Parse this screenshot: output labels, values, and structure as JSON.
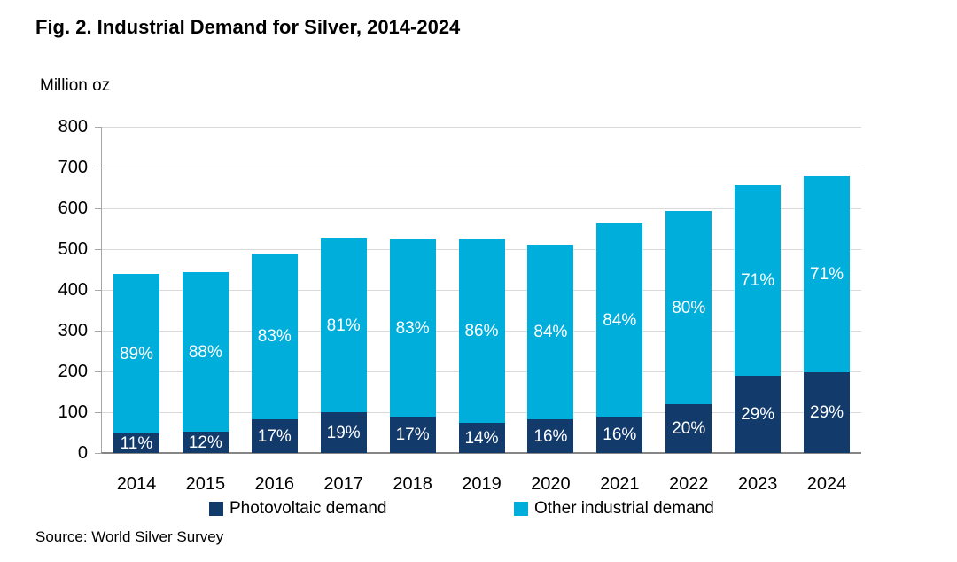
{
  "title": "Fig. 2. Industrial Demand for Silver, 2014-2024",
  "y_axis_title": "Million oz",
  "source": "Source: World Silver Survey",
  "colors": {
    "photovoltaic": "#123A6B",
    "other_industrial": "#00AEDC",
    "gridline": "#D9D9D9",
    "axis": "#A6A6A6"
  },
  "legend": {
    "items": [
      {
        "label": "Photovoltaic demand"
      },
      {
        "label": "Other industrial demand"
      }
    ]
  },
  "chart_data": {
    "type": "bar",
    "stacked": true,
    "title": "Fig. 2. Industrial Demand for Silver, 2014-2024",
    "ylabel": "Million oz",
    "xlabel": "",
    "categories": [
      "2014",
      "2015",
      "2016",
      "2017",
      "2018",
      "2019",
      "2020",
      "2021",
      "2022",
      "2023",
      "2024"
    ],
    "series": [
      {
        "name": "Photovoltaic demand",
        "color": "#123A6B",
        "values": [
          48,
          53,
          83,
          100,
          89,
          73,
          82,
          90,
          119,
          190,
          197
        ],
        "labels": [
          "11%",
          "12%",
          "17%",
          "19%",
          "17%",
          "14%",
          "16%",
          "16%",
          "20%",
          "29%",
          "29%"
        ]
      },
      {
        "name": "Other industrial demand",
        "color": "#00AEDC",
        "values": [
          392,
          390,
          407,
          427,
          435,
          450,
          428,
          473,
          474,
          467,
          483
        ],
        "labels": [
          "89%",
          "88%",
          "83%",
          "81%",
          "83%",
          "86%",
          "84%",
          "84%",
          "80%",
          "71%",
          "71%"
        ]
      }
    ],
    "totals": [
      440,
      443,
      490,
      527,
      524,
      523,
      510,
      563,
      593,
      657,
      680
    ],
    "ylim": [
      0,
      800
    ],
    "y_ticks": [
      0,
      100,
      200,
      300,
      400,
      500,
      600,
      700,
      800
    ],
    "grid": true,
    "legend_position": "bottom"
  }
}
